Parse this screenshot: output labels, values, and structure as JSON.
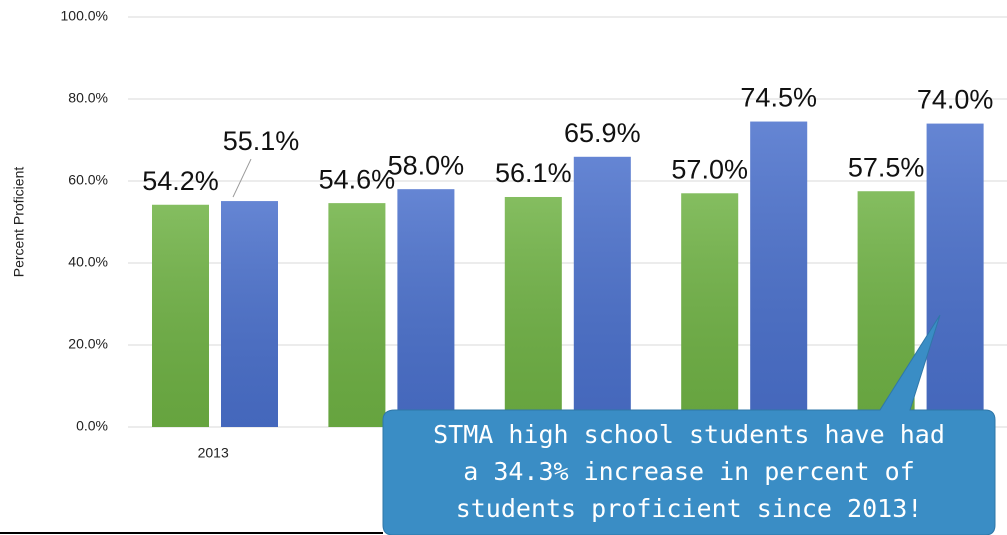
{
  "chart_data": {
    "type": "bar",
    "y_label": "Percent Proficient",
    "categories": [
      "2013",
      null,
      null,
      null,
      null
    ],
    "series": [
      {
        "color": "#6fb244",
        "values": [
          54.2,
          54.6,
          56.1,
          57.0,
          57.5
        ],
        "value_labels": [
          "54.2%",
          "54.6%",
          "56.1%",
          "57.0%",
          "57.5%"
        ]
      },
      {
        "color": "#4a70cc",
        "values": [
          55.1,
          58.0,
          65.9,
          74.5,
          74.0
        ],
        "value_labels": [
          "55.1%",
          "58.0%",
          "65.9%",
          "74.5%",
          "74.0%"
        ]
      }
    ],
    "ylim": [
      0,
      100
    ],
    "yticks": [
      {
        "value": 0,
        "label": "0.0%"
      },
      {
        "value": 20,
        "label": "20.0%"
      },
      {
        "value": 40,
        "label": "40.0%"
      },
      {
        "value": 60,
        "label": "60.0%"
      },
      {
        "value": 80,
        "label": "80.0%"
      },
      {
        "value": 100,
        "label": "100.0%"
      }
    ],
    "grid": true,
    "annotation": [
      "STMA high school students have had",
      "a 34.3% increase in percent of",
      "students proficient since 2013!"
    ]
  }
}
